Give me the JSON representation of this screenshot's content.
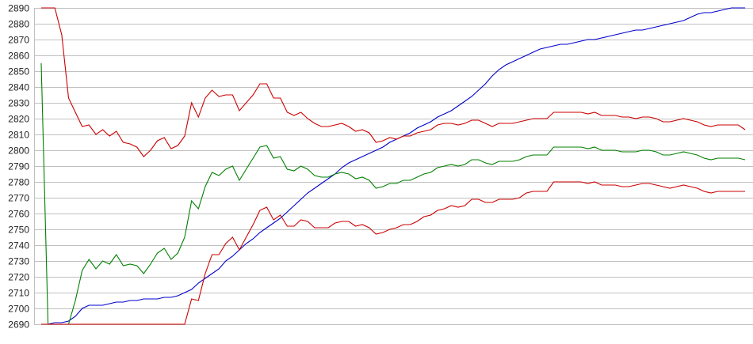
{
  "chart_data": {
    "type": "line",
    "title": "",
    "xlabel": "",
    "ylabel": "",
    "ylim": [
      2690,
      2890
    ],
    "yticks": [
      2690,
      2700,
      2710,
      2720,
      2730,
      2740,
      2750,
      2760,
      2770,
      2780,
      2790,
      2800,
      2810,
      2820,
      2830,
      2840,
      2850,
      2860,
      2870,
      2880,
      2890
    ],
    "xlim": [
      0,
      103
    ],
    "grid": "horizontal",
    "series": [
      {
        "color": "#0000cc",
        "values": [
          2690,
          2690,
          2691,
          2691,
          2692,
          2695,
          2700,
          2702,
          2702,
          2702,
          2703,
          2704,
          2704,
          2705,
          2705,
          2706,
          2706,
          2706,
          2707,
          2707,
          2708,
          2710,
          2712,
          2716,
          2719,
          2722,
          2725,
          2730,
          2733,
          2737,
          2741,
          2744,
          2748,
          2751,
          2754,
          2757,
          2761,
          2765,
          2769,
          2773,
          2776,
          2779,
          2782,
          2785,
          2789,
          2792,
          2794,
          2796,
          2798,
          2800,
          2802,
          2805,
          2807,
          2809,
          2811,
          2814,
          2816,
          2818,
          2821,
          2823,
          2825,
          2828,
          2831,
          2834,
          2838,
          2842,
          2847,
          2851,
          2854,
          2856,
          2858,
          2860,
          2862,
          2864,
          2865,
          2866,
          2867,
          2867,
          2868,
          2869,
          2870,
          2870,
          2871,
          2872,
          2873,
          2874,
          2875,
          2876,
          2876,
          2877,
          2878,
          2879,
          2880,
          2881,
          2882,
          2884,
          2886,
          2887,
          2887,
          2888,
          2889,
          2890,
          2890,
          2890
        ]
      },
      {
        "color": "#008000",
        "values": [
          2855,
          2690,
          2690,
          2690,
          2690,
          2705,
          2724,
          2731,
          2725,
          2730,
          2728,
          2734,
          2727,
          2728,
          2727,
          2722,
          2728,
          2735,
          2738,
          2731,
          2735,
          2745,
          2768,
          2763,
          2777,
          2786,
          2784,
          2788,
          2790,
          2781,
          2788,
          2795,
          2802,
          2803,
          2795,
          2796,
          2788,
          2787,
          2790,
          2788,
          2784,
          2783,
          2783,
          2785,
          2786,
          2785,
          2782,
          2783,
          2781,
          2776,
          2777,
          2779,
          2779,
          2781,
          2781,
          2783,
          2785,
          2786,
          2789,
          2790,
          2791,
          2790,
          2791,
          2794,
          2794,
          2792,
          2791,
          2793,
          2793,
          2793,
          2794,
          2796,
          2797,
          2797,
          2797,
          2802,
          2802,
          2802,
          2802,
          2802,
          2801,
          2802,
          2800,
          2800,
          2800,
          2799,
          2799,
          2799,
          2800,
          2800,
          2799,
          2797,
          2797,
          2798,
          2799,
          2798,
          2797,
          2795,
          2794,
          2795,
          2795,
          2795,
          2795,
          2794
        ]
      },
      {
        "color": "#cc0000",
        "values": [
          2690,
          2690,
          2690,
          2690,
          2690,
          2690,
          2690,
          2690,
          2690,
          2690,
          2690,
          2690,
          2690,
          2690,
          2690,
          2690,
          2690,
          2690,
          2690,
          2690,
          2690,
          2690,
          2706,
          2705,
          2722,
          2734,
          2734,
          2741,
          2745,
          2737,
          2745,
          2753,
          2762,
          2764,
          2756,
          2759,
          2752,
          2752,
          2756,
          2755,
          2751,
          2751,
          2751,
          2754,
          2755,
          2755,
          2752,
          2753,
          2751,
          2747,
          2748,
          2750,
          2751,
          2753,
          2753,
          2755,
          2758,
          2759,
          2762,
          2763,
          2765,
          2764,
          2765,
          2769,
          2769,
          2767,
          2767,
          2769,
          2769,
          2769,
          2770,
          2773,
          2774,
          2774,
          2774,
          2780,
          2780,
          2780,
          2780,
          2780,
          2779,
          2780,
          2778,
          2778,
          2778,
          2777,
          2777,
          2778,
          2779,
          2779,
          2778,
          2777,
          2776,
          2777,
          2778,
          2777,
          2776,
          2774,
          2773,
          2774,
          2774,
          2774,
          2774,
          2774
        ]
      },
      {
        "color": "#cc0000",
        "values": [
          2890,
          2890,
          2890,
          2873,
          2833,
          2824,
          2815,
          2816,
          2810,
          2813,
          2809,
          2812,
          2805,
          2804,
          2802,
          2796,
          2800,
          2806,
          2808,
          2801,
          2803,
          2809,
          2830,
          2821,
          2833,
          2838,
          2834,
          2835,
          2835,
          2825,
          2830,
          2835,
          2842,
          2842,
          2833,
          2833,
          2824,
          2822,
          2824,
          2820,
          2817,
          2815,
          2815,
          2816,
          2817,
          2815,
          2812,
          2813,
          2811,
          2805,
          2806,
          2808,
          2807,
          2809,
          2809,
          2811,
          2812,
          2813,
          2816,
          2817,
          2817,
          2816,
          2817,
          2819,
          2819,
          2817,
          2815,
          2817,
          2817,
          2817,
          2818,
          2819,
          2820,
          2820,
          2820,
          2824,
          2824,
          2824,
          2824,
          2824,
          2823,
          2824,
          2822,
          2822,
          2822,
          2821,
          2821,
          2820,
          2821,
          2821,
          2820,
          2818,
          2818,
          2819,
          2820,
          2819,
          2818,
          2816,
          2815,
          2816,
          2816,
          2816,
          2816,
          2813
        ]
      }
    ]
  }
}
